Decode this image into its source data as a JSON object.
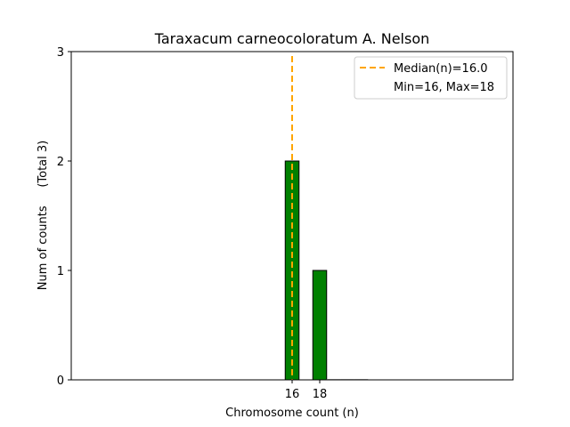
{
  "chart_data": {
    "type": "bar",
    "title": "Taraxacum carneocoloratum A. Nelson",
    "xlabel": "Chromosome count (n)",
    "ylabel": "Num of counts     (Total 3)",
    "x": [
      16,
      18,
      19,
      20,
      21
    ],
    "values": [
      2,
      1,
      0,
      0,
      0
    ],
    "xticks": [
      16,
      18
    ],
    "yticks": [
      0,
      1,
      2,
      3
    ],
    "xlim": [
      0,
      32
    ],
    "ylim": [
      0,
      3
    ],
    "median": 16.0,
    "legend": {
      "placement": "top-right",
      "entries": [
        "Median(n)=16.0",
        "Min=16, Max=18"
      ]
    },
    "bar_color": "#008000",
    "median_color": "#FFA500"
  }
}
